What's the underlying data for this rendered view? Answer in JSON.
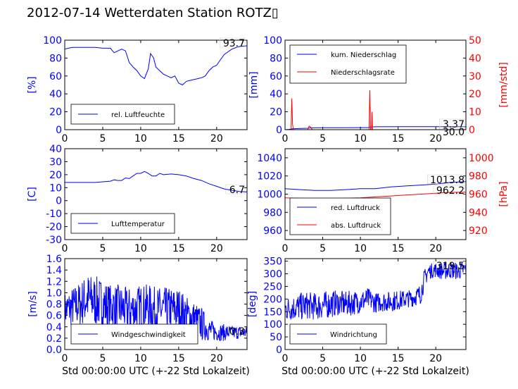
{
  "title": "2012-07-14 Wetterdaten Station ROTZ▯",
  "xlabel": "Std 00:00:00 UTC (+-22 Std Lokalzeit)",
  "colors": {
    "blue": "#0000ff",
    "red": "#ff0000",
    "black": "#000000"
  },
  "chart_data": [
    {
      "id": "humidity",
      "type": "line",
      "ylabel": "[%]",
      "xlim": [
        0,
        24
      ],
      "ylim": [
        0,
        100
      ],
      "xticks": [
        0,
        5,
        10,
        15,
        20
      ],
      "yticks": [
        0,
        20,
        40,
        60,
        80,
        100
      ],
      "annotation": "93.7",
      "legend_position": "lower-center",
      "series": [
        {
          "name": "rel. Luftfeuchte",
          "color": "#0000ff",
          "x": [
            0,
            0.5,
            1,
            2,
            3,
            4,
            5,
            6,
            6.5,
            7.5,
            8,
            8.5,
            9,
            9.5,
            10,
            10.5,
            11,
            11.3,
            11.7,
            12,
            12.5,
            13,
            13.5,
            14,
            14.5,
            15,
            15.5,
            16,
            16.5,
            17,
            17.5,
            18,
            18.5,
            19,
            19.5,
            20,
            20.5,
            21,
            22,
            23,
            24
          ],
          "y": [
            90,
            91,
            92,
            92,
            92,
            92,
            91,
            91,
            86,
            90,
            88,
            75,
            70,
            66,
            60,
            57,
            68,
            85,
            80,
            70,
            66,
            62,
            60,
            58,
            60,
            52,
            50,
            54,
            55,
            56,
            57,
            58,
            60,
            66,
            70,
            72,
            78,
            84,
            90,
            93,
            93.7
          ]
        }
      ]
    },
    {
      "id": "precipitation",
      "type": "line",
      "ylabel": "[mm]",
      "y2label": "[mm/std]",
      "xlim": [
        0,
        24
      ],
      "ylim": [
        0,
        100
      ],
      "y2lim": [
        0,
        50
      ],
      "xticks": [
        0,
        5,
        10,
        15,
        20
      ],
      "yticks": [
        0,
        20,
        40,
        60,
        80,
        100
      ],
      "y2ticks": [
        0,
        10,
        20,
        30,
        40,
        50
      ],
      "annotations": [
        "3.37",
        "30.0"
      ],
      "legend_position": "upper-left",
      "series": [
        {
          "name": "kum. Niederschlag",
          "color": "#0000ff",
          "axis": "left",
          "x": [
            0,
            0.5,
            1,
            2,
            3,
            3.3,
            5,
            8,
            11,
            11.3,
            12,
            15,
            18,
            21,
            24
          ],
          "y": [
            0,
            0.3,
            1.0,
            1.3,
            1.6,
            2.0,
            2.1,
            2.2,
            2.3,
            3.0,
            3.2,
            3.3,
            3.35,
            3.37,
            3.37
          ]
        },
        {
          "name": "Niederschlagsrate",
          "color": "#ff0000",
          "axis": "right",
          "x": [
            0,
            0.8,
            0.9,
            1.0,
            1.1,
            1.2,
            3.0,
            3.2,
            3.4,
            3.6,
            11.0,
            11.15,
            11.25,
            11.35,
            11.5,
            11.55,
            11.6,
            11.7,
            24
          ],
          "y": [
            0,
            0,
            17.5,
            3,
            0,
            0,
            0,
            2,
            1.5,
            0,
            0,
            0,
            22,
            0,
            0,
            10,
            0,
            0,
            0
          ]
        }
      ]
    },
    {
      "id": "temperature",
      "type": "line",
      "ylabel": "[C]",
      "xlim": [
        0,
        24
      ],
      "ylim": [
        -30,
        40
      ],
      "xticks": [
        0,
        5,
        10,
        15,
        20
      ],
      "yticks": [
        -30,
        -20,
        -10,
        0,
        10,
        20,
        30,
        40
      ],
      "annotation": "6.7",
      "legend_position": "lower-center",
      "series": [
        {
          "name": "Lufttemperatur",
          "color": "#0000ff",
          "x": [
            0,
            1,
            2,
            3,
            4,
            5,
            6,
            6.5,
            7,
            7.5,
            8,
            8.5,
            9,
            9.5,
            10,
            10.5,
            11,
            11.5,
            12,
            12.5,
            13,
            14,
            15,
            16,
            17,
            18,
            19,
            20,
            21,
            22,
            23,
            24
          ],
          "y": [
            14,
            14,
            14,
            14,
            14,
            14.5,
            15,
            16,
            15.5,
            15.5,
            17.5,
            17,
            19,
            21,
            21,
            22.5,
            21,
            19,
            19,
            21,
            20,
            20.5,
            20,
            19,
            17,
            15.5,
            13,
            11,
            9,
            8,
            7,
            6.7
          ]
        }
      ]
    },
    {
      "id": "pressure",
      "type": "line",
      "y2label": "[hPa]",
      "xlim": [
        0,
        24
      ],
      "ylim": [
        950,
        1050
      ],
      "y2lim": [
        910,
        1010
      ],
      "xticks": [
        0,
        5,
        10,
        15,
        20
      ],
      "yticks": [
        960,
        980,
        1000,
        1020,
        1040
      ],
      "y2ticks": [
        920,
        940,
        960,
        980,
        1000
      ],
      "annotations": [
        "1013.8",
        "962.2"
      ],
      "legend_position": "lower-center",
      "series": [
        {
          "name": "red. Luftdruck",
          "color": "#0000ff",
          "axis": "left",
          "x": [
            0,
            2,
            4,
            6,
            8,
            10,
            12,
            14,
            16,
            18,
            20,
            22,
            24
          ],
          "y": [
            1006,
            1005,
            1004,
            1004,
            1005,
            1006,
            1006,
            1008,
            1009,
            1010,
            1011,
            1013,
            1013.8
          ]
        },
        {
          "name": "abs. Luftdruck",
          "color": "#ff0000",
          "axis": "right",
          "x": [
            0,
            2,
            4,
            6,
            8,
            10,
            12,
            14,
            16,
            18,
            20,
            22,
            24
          ],
          "y": [
            956,
            955.5,
            955,
            955,
            955.5,
            956,
            957,
            958,
            959,
            960,
            961,
            962,
            962.2
          ]
        }
      ]
    },
    {
      "id": "windspeed",
      "type": "line",
      "ylabel": "[m/s]",
      "xlim": [
        0,
        24
      ],
      "ylim": [
        0,
        1.6
      ],
      "xticks": [
        0,
        5,
        10,
        15,
        20
      ],
      "yticks": [
        0.0,
        0.2,
        0.4,
        0.6,
        0.8,
        1.0,
        1.2,
        1.4,
        1.6
      ],
      "annotation": "0.3",
      "legend_position": "lower-center",
      "series": [
        {
          "name": "Windgeschwindigkeit",
          "color": "#0000ff",
          "x": [
            0,
            1,
            2,
            3,
            4,
            5,
            6,
            7,
            8,
            9,
            10,
            11,
            12,
            13,
            14,
            15,
            16,
            17,
            18,
            19,
            20,
            21,
            22,
            23,
            24
          ],
          "y": [
            0.7,
            0.75,
            0.8,
            0.9,
            0.85,
            0.8,
            0.75,
            0.75,
            0.7,
            0.7,
            0.75,
            0.75,
            0.7,
            0.7,
            0.7,
            0.7,
            0.6,
            0.55,
            0.45,
            0.35,
            0.3,
            0.3,
            0.3,
            0.3,
            0.3
          ],
          "spread": [
            0.3,
            0.35,
            0.4,
            0.45,
            0.45,
            0.45,
            0.4,
            0.4,
            0.4,
            0.4,
            0.4,
            0.4,
            0.4,
            0.4,
            0.4,
            0.4,
            0.35,
            0.3,
            0.3,
            0.2,
            0.15,
            0.15,
            0.12,
            0.12,
            0.1
          ]
        }
      ]
    },
    {
      "id": "winddirection",
      "type": "line",
      "ylabel": "[deg]",
      "xlim": [
        0,
        24
      ],
      "ylim": [
        0,
        360
      ],
      "xticks": [
        0,
        5,
        10,
        15,
        20
      ],
      "yticks": [
        0,
        50,
        100,
        150,
        200,
        250,
        300,
        350
      ],
      "annotation": "319.5",
      "legend_position": "lower-center",
      "series": [
        {
          "name": "Windrichtung",
          "color": "#0000ff",
          "x": [
            0,
            1,
            2,
            3,
            4,
            5,
            6,
            7,
            8,
            9,
            10,
            11,
            12,
            13,
            14,
            15,
            16,
            17,
            18,
            18.5,
            19,
            20,
            21,
            22,
            23,
            24
          ],
          "y": [
            160,
            165,
            170,
            175,
            170,
            175,
            180,
            185,
            180,
            185,
            190,
            200,
            185,
            190,
            190,
            195,
            200,
            205,
            220,
            280,
            310,
            315,
            310,
            315,
            310,
            319.5
          ],
          "spread": [
            50,
            50,
            55,
            55,
            55,
            55,
            55,
            50,
            50,
            50,
            45,
            45,
            40,
            40,
            40,
            40,
            35,
            35,
            40,
            40,
            30,
            30,
            35,
            35,
            35,
            30
          ]
        }
      ]
    }
  ]
}
